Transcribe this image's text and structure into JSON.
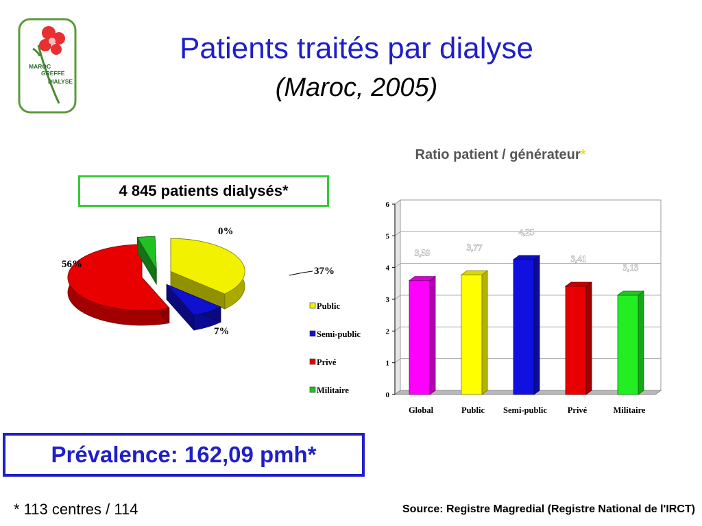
{
  "logo": {
    "lines": [
      "MAROC",
      "GREFFE",
      "DIALYSE"
    ]
  },
  "header": {
    "title": "Patients traités par dialyse",
    "subtitle": "(Maroc, 2005)"
  },
  "total_label": "4 845 patients dialysés*",
  "prevalence_label": "Prévalence: 162,09 pmh*",
  "footnote": "* 113 centres / 114",
  "source": "Source: Registre Magredial (Registre National de l'IRCT)",
  "chart_data": [
    {
      "type": "pie",
      "categories": [
        "Public",
        "Semi-public",
        "Privé",
        "Militaire"
      ],
      "values": [
        37,
        7,
        56,
        0
      ],
      "value_labels": [
        "37%",
        "7%",
        "56%",
        "0%"
      ],
      "colors": [
        "#f2f200",
        "#1010d0",
        "#e80000",
        "#22c022"
      ],
      "legend_placement": "bottom-right"
    },
    {
      "type": "bar",
      "title": "Ratio patient / générateur",
      "title_mark": "*",
      "categories": [
        "Global",
        "Public",
        "Semi-public",
        "Privé",
        "Militaire"
      ],
      "values": [
        3.59,
        3.77,
        4.25,
        3.41,
        3.13
      ],
      "value_labels": [
        "3,59",
        "3,77",
        "4,25",
        "3,41",
        "3,13"
      ],
      "colors": [
        "#ff00ff",
        "#ffff00",
        "#1010e0",
        "#e80000",
        "#22ee22"
      ],
      "ylim": [
        0,
        6
      ],
      "yticks": [
        0,
        1,
        2,
        3,
        4,
        5,
        6
      ],
      "grid": true,
      "legend": false
    }
  ]
}
